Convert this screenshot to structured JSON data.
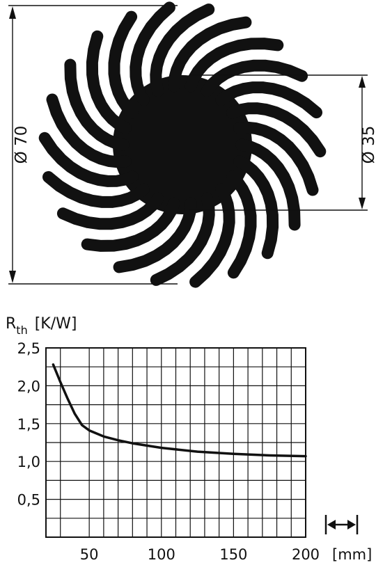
{
  "drawing": {
    "outer_dim_label": "Ø 70",
    "inner_dim_label": "Ø 35",
    "fin_count": 22,
    "fill_color": "#111111"
  },
  "chart_data": {
    "type": "line",
    "ylabel_main": "R",
    "ylabel_sub": "th",
    "ylabel_unit": "[K/W]",
    "xunit": "[mm]",
    "xlim": [
      20,
      200
    ],
    "ylim": [
      0,
      2.5
    ],
    "xticks": [
      50,
      100,
      150,
      200
    ],
    "xtick_labels": [
      "50",
      "100",
      "150",
      "200"
    ],
    "yticks": [
      0.5,
      1.0,
      1.5,
      2.0,
      2.5
    ],
    "ytick_labels": [
      "0,5",
      "1,0",
      "1,5",
      "2,0",
      "2,5"
    ],
    "grid": true,
    "series": [
      {
        "x": [
          25,
          30,
          35,
          40,
          45,
          50,
          60,
          70,
          80,
          100,
          125,
          150,
          175,
          200
        ],
        "y": [
          2.28,
          2.05,
          1.83,
          1.63,
          1.48,
          1.41,
          1.33,
          1.28,
          1.24,
          1.18,
          1.13,
          1.1,
          1.08,
          1.07
        ]
      }
    ]
  }
}
